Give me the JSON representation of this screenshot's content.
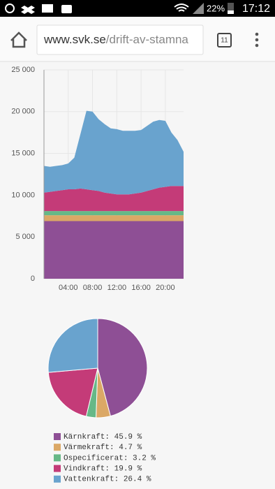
{
  "status_bar": {
    "battery": "22%",
    "time": "17:12"
  },
  "browser": {
    "url_domain": "www.svk.se",
    "url_path": "/drift-av-stamna",
    "tab_count": "11"
  },
  "chart_data": [
    {
      "type": "stacked-area",
      "x": [
        0,
        1,
        2,
        3,
        4,
        5,
        6,
        7,
        8,
        9,
        10,
        11,
        12,
        13,
        14,
        15,
        16,
        17,
        18,
        19,
        20,
        21,
        22,
        23
      ],
      "xlim": [
        0,
        23
      ],
      "xticks": [
        {
          "value": 4,
          "label": "04:00"
        },
        {
          "value": 8,
          "label": "08:00"
        },
        {
          "value": 12,
          "label": "12:00"
        },
        {
          "value": 16,
          "label": "16:00"
        },
        {
          "value": 20,
          "label": "20:00"
        }
      ],
      "ylim": [
        0,
        25000
      ],
      "yticks": [
        0,
        {
          "value": 5000,
          "label": "5 000"
        },
        {
          "value": 10000,
          "label": "10 000"
        },
        {
          "value": 15000,
          "label": "15 000"
        },
        {
          "value": 20000,
          "label": "20 000"
        },
        {
          "value": 25000,
          "label": "25 000"
        }
      ],
      "grid": true,
      "series": [
        {
          "color": "#8e4f95",
          "values": [
            6900,
            6900,
            6900,
            6900,
            6900,
            6900,
            6900,
            6900,
            6900,
            6900,
            6900,
            6900,
            6900,
            6900,
            6900,
            6900,
            6900,
            6900,
            6900,
            6900,
            6900,
            6900,
            6900,
            6900
          ]
        },
        {
          "color": "#dba866",
          "values": [
            700,
            700,
            700,
            700,
            700,
            700,
            700,
            700,
            700,
            700,
            700,
            700,
            700,
            700,
            700,
            700,
            700,
            700,
            700,
            700,
            700,
            700,
            700,
            700
          ]
        },
        {
          "color": "#66b887",
          "values": [
            500,
            500,
            500,
            500,
            500,
            500,
            500,
            500,
            500,
            500,
            500,
            500,
            500,
            500,
            500,
            500,
            500,
            500,
            500,
            500,
            500,
            500,
            500,
            500
          ]
        },
        {
          "color": "#c43b78",
          "values": [
            2200,
            2300,
            2400,
            2500,
            2600,
            2600,
            2700,
            2600,
            2500,
            2400,
            2200,
            2100,
            2000,
            2000,
            2000,
            2100,
            2200,
            2400,
            2600,
            2800,
            2900,
            3000,
            3000,
            3000
          ]
        },
        {
          "color": "#69a3ce",
          "values": [
            3200,
            3000,
            3000,
            3000,
            3100,
            3800,
            6500,
            9400,
            9400,
            8600,
            8200,
            7800,
            7800,
            7600,
            7600,
            7500,
            7500,
            7800,
            8100,
            8100,
            7900,
            6400,
            5500,
            4100
          ]
        }
      ]
    },
    {
      "type": "pie",
      "categories": [
        "Kärnkraft: 45.9 %",
        "Värmekraft: 4.7 %",
        "Ospecificerat: 3.2 %",
        "Vindkraft: 19.9 %",
        "Vattenkraft: 26.4 %"
      ],
      "values": [
        45.9,
        4.7,
        3.2,
        19.9,
        26.4
      ],
      "colors": [
        "#8e4f95",
        "#dba866",
        "#66b887",
        "#c43b78",
        "#69a3ce"
      ]
    }
  ]
}
